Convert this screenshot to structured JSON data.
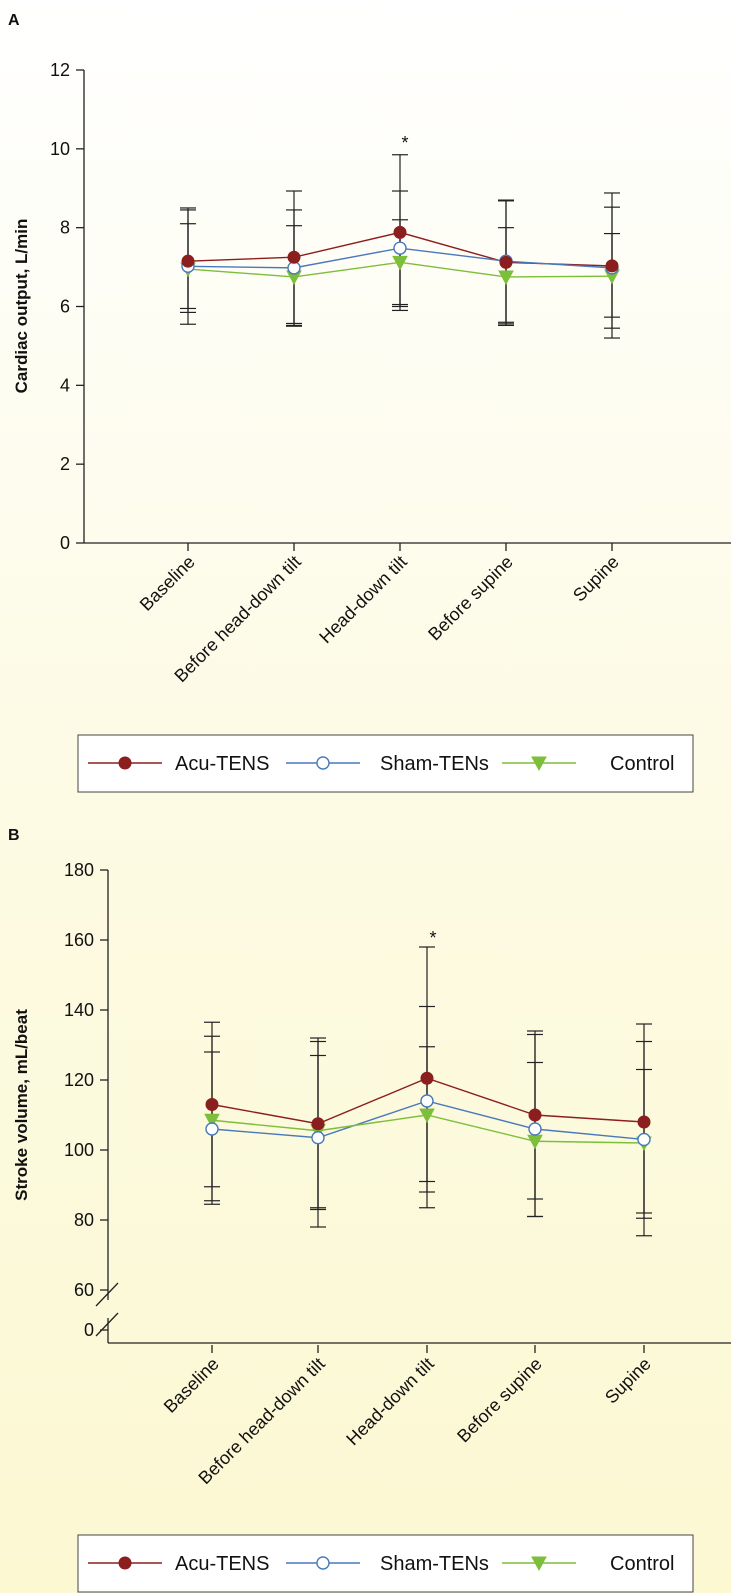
{
  "colors": {
    "acu": "#8b1e1e",
    "sham": "#4a78bd",
    "control": "#7dbe3a",
    "axis": "#222222",
    "error": "#222222"
  },
  "legend": {
    "acu": "Acu-TENS",
    "sham": "Sham-TENs",
    "control": "Control"
  },
  "chart_data": [
    {
      "panel": "A",
      "type": "line",
      "ylabel": "Cardiac output, L/min",
      "ylim": [
        0,
        12
      ],
      "yticks": [
        0,
        2,
        4,
        6,
        8,
        10,
        12
      ],
      "categories": [
        "Baseline",
        "Before head-down tilt",
        "Head-down tilt",
        "Before supine",
        "Supine"
      ],
      "annotation": {
        "text": "*",
        "category_index": 2
      },
      "series": [
        {
          "name": "Acu-TENS",
          "marker": "filled-circle",
          "values": [
            7.15,
            7.25,
            7.88,
            7.12,
            7.03
          ],
          "error_high": [
            8.45,
            8.93,
            9.85,
            8.7,
            8.88
          ],
          "error_low": [
            5.85,
            5.57,
            6.05,
            5.56,
            5.2
          ]
        },
        {
          "name": "Sham-TENs",
          "marker": "open-circle",
          "values": [
            7.02,
            6.98,
            7.48,
            7.15,
            6.98
          ],
          "error_high": [
            8.5,
            8.45,
            8.93,
            8.68,
            8.52
          ],
          "error_low": [
            5.55,
            5.5,
            6.0,
            5.6,
            5.45
          ]
        },
        {
          "name": "Control",
          "marker": "down-triangle",
          "values": [
            6.95,
            6.75,
            7.12,
            6.75,
            6.77
          ],
          "error_high": [
            8.1,
            8.05,
            8.2,
            8.0,
            7.85
          ],
          "error_low": [
            5.95,
            5.52,
            5.9,
            5.52,
            5.73
          ]
        }
      ]
    },
    {
      "panel": "B",
      "type": "line",
      "ylabel": "Stroke volume, mL/beat",
      "ylim": [
        60,
        180
      ],
      "yticks": [
        0,
        60,
        80,
        100,
        120,
        140,
        160,
        180
      ],
      "axis_break": "between 0 and 60",
      "categories": [
        "Baseline",
        "Before head-down tilt",
        "Head-down tilt",
        "Before supine",
        "Supine"
      ],
      "annotation": {
        "text": "*",
        "category_index": 2
      },
      "series": [
        {
          "name": "Acu-TENS",
          "marker": "filled-circle",
          "values": [
            113,
            107.5,
            120.5,
            110,
            108
          ],
          "error_high": [
            136.5,
            132,
            158,
            134,
            136
          ],
          "error_low": [
            89.5,
            83.5,
            83.5,
            86,
            75.5
          ]
        },
        {
          "name": "Sham-TENs",
          "marker": "open-circle",
          "values": [
            106,
            103.5,
            114,
            106,
            103
          ],
          "error_high": [
            132.5,
            131,
            141,
            133,
            131
          ],
          "error_low": [
            84.5,
            78,
            91,
            81,
            80.5
          ]
        },
        {
          "name": "Control",
          "marker": "down-triangle",
          "values": [
            108.5,
            105.5,
            110,
            102.5,
            102
          ],
          "error_high": [
            128,
            127,
            129.5,
            125,
            123
          ],
          "error_low": [
            85.5,
            83,
            88,
            81,
            82
          ]
        }
      ]
    }
  ]
}
